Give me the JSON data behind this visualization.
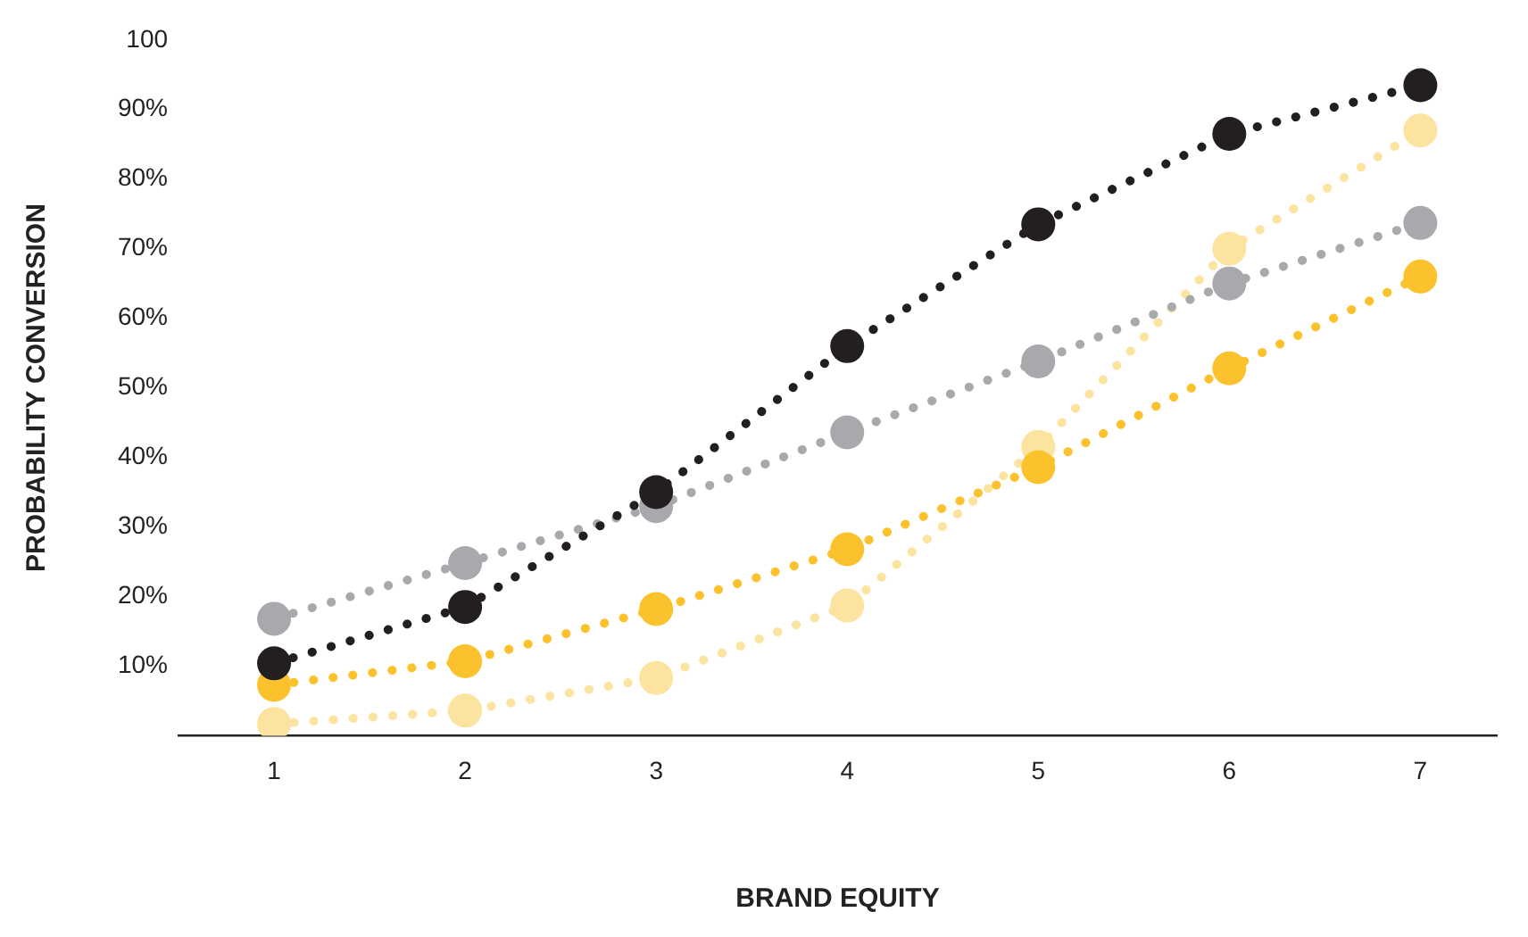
{
  "chart_data": {
    "type": "line",
    "xlabel": "BRAND EQUITY",
    "ylabel": "PROBABILITY CONVERSION",
    "x": [
      1,
      2,
      3,
      4,
      5,
      6,
      7
    ],
    "series": [
      {
        "color": "#231f20",
        "values": [
          10.4,
          18.5,
          35,
          56,
          73.5,
          86.5,
          93.5
        ]
      },
      {
        "color": "#a7a9ac",
        "values": [
          16.8,
          24.8,
          33,
          43.6,
          53.8,
          65,
          73.7
        ]
      },
      {
        "color": "#fcc22d",
        "values": [
          7.3,
          10.7,
          18.2,
          26.8,
          38.6,
          52.8,
          66
        ]
      },
      {
        "color": "#fde3a0",
        "values": [
          1.7,
          3.6,
          8.3,
          18.7,
          41.5,
          70,
          87
        ]
      }
    ],
    "xlim": [
      0.5,
      7.4
    ],
    "xticks": [
      1,
      2,
      3,
      4,
      5,
      6,
      7
    ],
    "ylim": [
      0,
      100
    ],
    "yticks": [
      {
        "value": 10,
        "label": "10%"
      },
      {
        "value": 20,
        "label": "20%"
      },
      {
        "value": 30,
        "label": "30%"
      },
      {
        "value": 40,
        "label": "40%"
      },
      {
        "value": 50,
        "label": "50%"
      },
      {
        "value": 60,
        "label": "60%"
      },
      {
        "value": 70,
        "label": "70%"
      },
      {
        "value": 80,
        "label": "80%"
      },
      {
        "value": 90,
        "label": "90%"
      },
      100
    ],
    "grid": false,
    "legend": false,
    "marker": "circle",
    "line_style": "dotted"
  }
}
